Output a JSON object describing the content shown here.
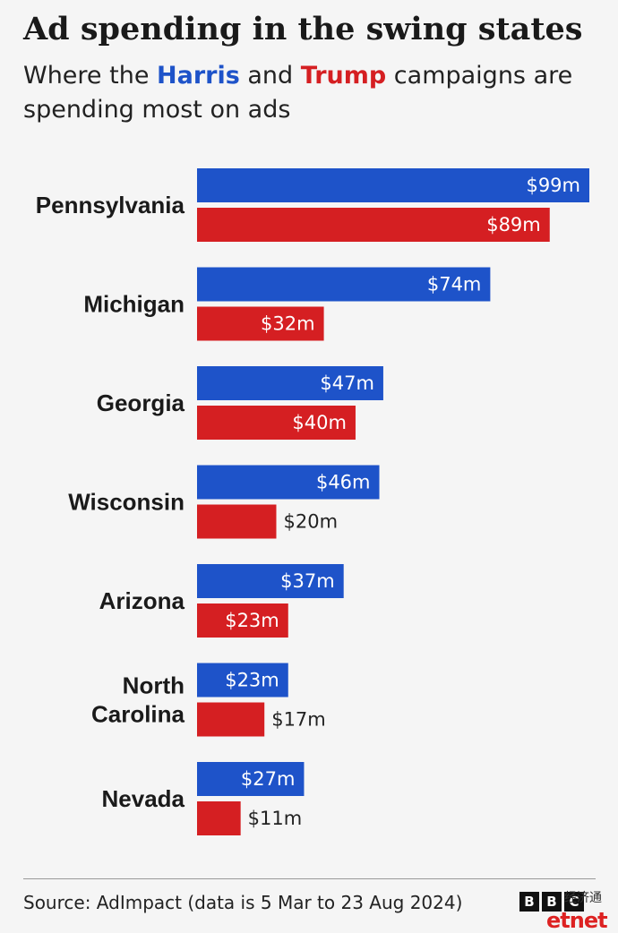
{
  "title": "Ad spending in the swing states",
  "subtitle": {
    "pre": "Where the ",
    "harris": "Harris",
    "mid": " and ",
    "trump": "Trump",
    "post": " campaigns are spending most on ads"
  },
  "colors": {
    "harris": "#1e53c9",
    "trump": "#d51f22",
    "inside_label": "#ffffff",
    "outside_label": "#222222"
  },
  "chart_data": {
    "type": "bar",
    "orientation": "horizontal",
    "categories": [
      "Pennsylvania",
      "Michigan",
      "Georgia",
      "Wisconsin",
      "Arizona",
      "North Carolina",
      "Nevada"
    ],
    "category_lines": [
      [
        "Pennsylvania"
      ],
      [
        "Michigan"
      ],
      [
        "Georgia"
      ],
      [
        "Wisconsin"
      ],
      [
        "Arizona"
      ],
      [
        "North",
        "Carolina"
      ],
      [
        "Nevada"
      ]
    ],
    "series": [
      {
        "name": "Harris",
        "values": [
          99,
          74,
          47,
          46,
          37,
          23,
          27
        ],
        "labels": [
          "$99m",
          "$74m",
          "$47m",
          "$46m",
          "$37m",
          "$23m",
          "$27m"
        ]
      },
      {
        "name": "Trump",
        "values": [
          89,
          32,
          40,
          20,
          23,
          17,
          11
        ],
        "labels": [
          "$89m",
          "$32m",
          "$40m",
          "$20m",
          "$23m",
          "$17m",
          "$11m"
        ]
      }
    ],
    "title": "Ad spending in the swing states",
    "xlabel": "",
    "ylabel": "",
    "xlim": [
      0,
      99
    ],
    "unit": "$m",
    "grid": false
  },
  "source": "Source: AdImpact (data is 5 Mar to 23 Aug 2024)",
  "logo": [
    "B",
    "B",
    "C"
  ],
  "watermark": "etnet",
  "watermark_cn": "经济通"
}
